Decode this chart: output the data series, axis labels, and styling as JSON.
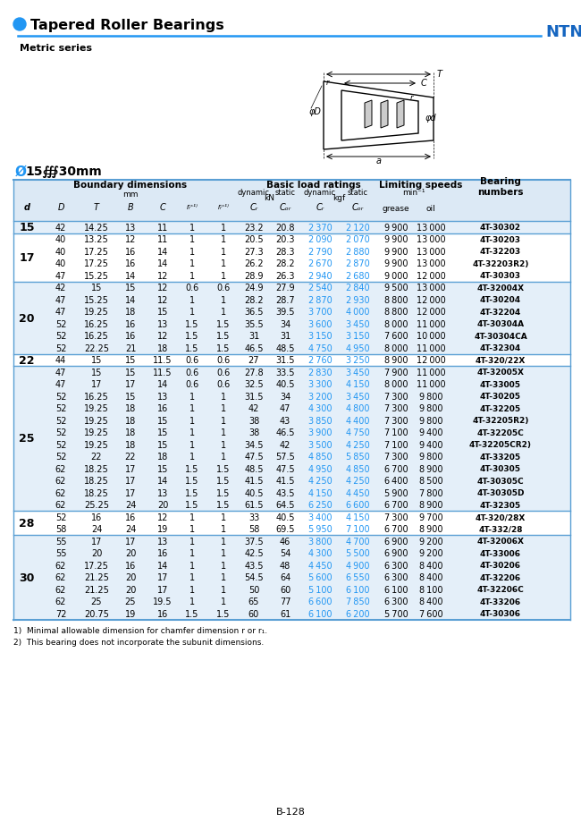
{
  "title": "Tapered Roller Bearings",
  "subtitle": "Metric series",
  "brand": "NTN",
  "footnote1": "1)  Minimal allowable dimension for chamfer dimension r or r₁.",
  "footnote2": "2)  This bearing does not incorporate the subunit dimensions.",
  "page": "B-128",
  "rows": [
    {
      "d": 15,
      "D": 42,
      "T": 14.25,
      "B": 13,
      "C": 11,
      "r1": 1,
      "r2": 1,
      "Cr": 23.2,
      "C0r": 20.8,
      "Cr_kgf": 2370,
      "C0r_kgf": 2120,
      "grease": 9900,
      "oil": 13000,
      "bearing": "4T-30302"
    },
    {
      "d": 17,
      "D": 40,
      "T": 13.25,
      "B": 12,
      "C": 11,
      "r1": 1,
      "r2": 1,
      "Cr": 20.5,
      "C0r": 20.3,
      "Cr_kgf": 2090,
      "C0r_kgf": 2070,
      "grease": 9900,
      "oil": 13000,
      "bearing": "4T-30203"
    },
    {
      "d": 17,
      "D": 40,
      "T": 17.25,
      "B": 16,
      "C": 14,
      "r1": 1,
      "r2": 1,
      "Cr": 27.3,
      "C0r": 28.3,
      "Cr_kgf": 2790,
      "C0r_kgf": 2880,
      "grease": 9900,
      "oil": 13000,
      "bearing": "4T-32203"
    },
    {
      "d": 17,
      "D": 40,
      "T": 17.25,
      "B": 16,
      "C": 14,
      "r1": 1,
      "r2": 1,
      "Cr": 26.2,
      "C0r": 28.2,
      "Cr_kgf": 2670,
      "C0r_kgf": 2870,
      "grease": 9900,
      "oil": 13000,
      "bearing": "4T-32203R2)"
    },
    {
      "d": 17,
      "D": 47,
      "T": 15.25,
      "B": 14,
      "C": 12,
      "r1": 1,
      "r2": 1,
      "Cr": 28.9,
      "C0r": 26.3,
      "Cr_kgf": 2940,
      "C0r_kgf": 2680,
      "grease": 9000,
      "oil": 12000,
      "bearing": "4T-30303"
    },
    {
      "d": 20,
      "D": 42,
      "T": 15,
      "B": 15,
      "C": 12,
      "r1": 0.6,
      "r2": 0.6,
      "Cr": 24.9,
      "C0r": 27.9,
      "Cr_kgf": 2540,
      "C0r_kgf": 2840,
      "grease": 9500,
      "oil": 13000,
      "bearing": "4T-32004X"
    },
    {
      "d": 20,
      "D": 47,
      "T": 15.25,
      "B": 14,
      "C": 12,
      "r1": 1,
      "r2": 1,
      "Cr": 28.2,
      "C0r": 28.7,
      "Cr_kgf": 2870,
      "C0r_kgf": 2930,
      "grease": 8800,
      "oil": 12000,
      "bearing": "4T-30204"
    },
    {
      "d": 20,
      "D": 47,
      "T": 19.25,
      "B": 18,
      "C": 15,
      "r1": 1,
      "r2": 1,
      "Cr": 36.5,
      "C0r": 39.5,
      "Cr_kgf": 3700,
      "C0r_kgf": 4000,
      "grease": 8800,
      "oil": 12000,
      "bearing": "4T-32204"
    },
    {
      "d": 20,
      "D": 52,
      "T": 16.25,
      "B": 16,
      "C": 13,
      "r1": 1.5,
      "r2": 1.5,
      "Cr": 35.5,
      "C0r": 34.0,
      "Cr_kgf": 3600,
      "C0r_kgf": 3450,
      "grease": 8000,
      "oil": 11000,
      "bearing": "4T-30304A"
    },
    {
      "d": 20,
      "D": 52,
      "T": 16.25,
      "B": 16,
      "C": 12,
      "r1": 1.5,
      "r2": 1.5,
      "Cr": 31.0,
      "C0r": 31.0,
      "Cr_kgf": 3150,
      "C0r_kgf": 3150,
      "grease": 7600,
      "oil": 10000,
      "bearing": "4T-30304CA"
    },
    {
      "d": 20,
      "D": 52,
      "T": 22.25,
      "B": 21,
      "C": 18,
      "r1": 1.5,
      "r2": 1.5,
      "Cr": 46.5,
      "C0r": 48.5,
      "Cr_kgf": 4750,
      "C0r_kgf": 4950,
      "grease": 8000,
      "oil": 11000,
      "bearing": "4T-32304"
    },
    {
      "d": 22,
      "D": 44,
      "T": 15,
      "B": 15,
      "C": 11.5,
      "r1": 0.6,
      "r2": 0.6,
      "Cr": 27.0,
      "C0r": 31.5,
      "Cr_kgf": 2760,
      "C0r_kgf": 3250,
      "grease": 8900,
      "oil": 12000,
      "bearing": "4T-320/22X"
    },
    {
      "d": 25,
      "D": 47,
      "T": 15,
      "B": 15,
      "C": 11.5,
      "r1": 0.6,
      "r2": 0.6,
      "Cr": 27.8,
      "C0r": 33.5,
      "Cr_kgf": 2830,
      "C0r_kgf": 3450,
      "grease": 7900,
      "oil": 11000,
      "bearing": "4T-32005X"
    },
    {
      "d": 25,
      "D": 47,
      "T": 17,
      "B": 17,
      "C": 14,
      "r1": 0.6,
      "r2": 0.6,
      "Cr": 32.5,
      "C0r": 40.5,
      "Cr_kgf": 3300,
      "C0r_kgf": 4150,
      "grease": 8000,
      "oil": 11000,
      "bearing": "4T-33005"
    },
    {
      "d": 25,
      "D": 52,
      "T": 16.25,
      "B": 15,
      "C": 13,
      "r1": 1,
      "r2": 1,
      "Cr": 31.5,
      "C0r": 34.0,
      "Cr_kgf": 3200,
      "C0r_kgf": 3450,
      "grease": 7300,
      "oil": 9800,
      "bearing": "4T-30205"
    },
    {
      "d": 25,
      "D": 52,
      "T": 19.25,
      "B": 18,
      "C": 16,
      "r1": 1,
      "r2": 1,
      "Cr": 42.0,
      "C0r": 47.0,
      "Cr_kgf": 4300,
      "C0r_kgf": 4800,
      "grease": 7300,
      "oil": 9800,
      "bearing": "4T-32205"
    },
    {
      "d": 25,
      "D": 52,
      "T": 19.25,
      "B": 18,
      "C": 15,
      "r1": 1,
      "r2": 1,
      "Cr": 38.0,
      "C0r": 43.0,
      "Cr_kgf": 3850,
      "C0r_kgf": 4400,
      "grease": 7300,
      "oil": 9800,
      "bearing": "4T-32205R2)"
    },
    {
      "d": 25,
      "D": 52,
      "T": 19.25,
      "B": 18,
      "C": 15,
      "r1": 1,
      "r2": 1,
      "Cr": 38.0,
      "C0r": 46.5,
      "Cr_kgf": 3900,
      "C0r_kgf": 4750,
      "grease": 7100,
      "oil": 9400,
      "bearing": "4T-32205C"
    },
    {
      "d": 25,
      "D": 52,
      "T": 19.25,
      "B": 18,
      "C": 15,
      "r1": 1,
      "r2": 1,
      "Cr": 34.5,
      "C0r": 42.0,
      "Cr_kgf": 3500,
      "C0r_kgf": 4250,
      "grease": 7100,
      "oil": 9400,
      "bearing": "4T-32205CR2)"
    },
    {
      "d": 25,
      "D": 52,
      "T": 22,
      "B": 22,
      "C": 18,
      "r1": 1,
      "r2": 1,
      "Cr": 47.5,
      "C0r": 57.5,
      "Cr_kgf": 4850,
      "C0r_kgf": 5850,
      "grease": 7300,
      "oil": 9800,
      "bearing": "4T-33205"
    },
    {
      "d": 25,
      "D": 62,
      "T": 18.25,
      "B": 17,
      "C": 15,
      "r1": 1.5,
      "r2": 1.5,
      "Cr": 48.5,
      "C0r": 47.5,
      "Cr_kgf": 4950,
      "C0r_kgf": 4850,
      "grease": 6700,
      "oil": 8900,
      "bearing": "4T-30305"
    },
    {
      "d": 25,
      "D": 62,
      "T": 18.25,
      "B": 17,
      "C": 14,
      "r1": 1.5,
      "r2": 1.5,
      "Cr": 41.5,
      "C0r": 41.5,
      "Cr_kgf": 4250,
      "C0r_kgf": 4250,
      "grease": 6400,
      "oil": 8500,
      "bearing": "4T-30305C"
    },
    {
      "d": 25,
      "D": 62,
      "T": 18.25,
      "B": 17,
      "C": 13,
      "r1": 1.5,
      "r2": 1.5,
      "Cr": 40.5,
      "C0r": 43.5,
      "Cr_kgf": 4150,
      "C0r_kgf": 4450,
      "grease": 5900,
      "oil": 7800,
      "bearing": "4T-30305D"
    },
    {
      "d": 25,
      "D": 62,
      "T": 25.25,
      "B": 24,
      "C": 20,
      "r1": 1.5,
      "r2": 1.5,
      "Cr": 61.5,
      "C0r": 64.5,
      "Cr_kgf": 6250,
      "C0r_kgf": 6600,
      "grease": 6700,
      "oil": 8900,
      "bearing": "4T-32305"
    },
    {
      "d": 28,
      "D": 52,
      "T": 16,
      "B": 16,
      "C": 12,
      "r1": 1,
      "r2": 1,
      "Cr": 33.0,
      "C0r": 40.5,
      "Cr_kgf": 3400,
      "C0r_kgf": 4150,
      "grease": 7300,
      "oil": 9700,
      "bearing": "4T-320/28X"
    },
    {
      "d": 28,
      "D": 58,
      "T": 24,
      "B": 24,
      "C": 19,
      "r1": 1,
      "r2": 1,
      "Cr": 58.0,
      "C0r": 69.5,
      "Cr_kgf": 5950,
      "C0r_kgf": 7100,
      "grease": 6700,
      "oil": 8900,
      "bearing": "4T-332/28"
    },
    {
      "d": 30,
      "D": 55,
      "T": 17,
      "B": 17,
      "C": 13,
      "r1": 1,
      "r2": 1,
      "Cr": 37.5,
      "C0r": 46.0,
      "Cr_kgf": 3800,
      "C0r_kgf": 4700,
      "grease": 6900,
      "oil": 9200,
      "bearing": "4T-32006X"
    },
    {
      "d": 30,
      "D": 55,
      "T": 20,
      "B": 20,
      "C": 16,
      "r1": 1,
      "r2": 1,
      "Cr": 42.5,
      "C0r": 54.0,
      "Cr_kgf": 4300,
      "C0r_kgf": 5500,
      "grease": 6900,
      "oil": 9200,
      "bearing": "4T-33006"
    },
    {
      "d": 30,
      "D": 62,
      "T": 17.25,
      "B": 16,
      "C": 14,
      "r1": 1,
      "r2": 1,
      "Cr": 43.5,
      "C0r": 48.0,
      "Cr_kgf": 4450,
      "C0r_kgf": 4900,
      "grease": 6300,
      "oil": 8400,
      "bearing": "4T-30206"
    },
    {
      "d": 30,
      "D": 62,
      "T": 21.25,
      "B": 20,
      "C": 17,
      "r1": 1,
      "r2": 1,
      "Cr": 54.5,
      "C0r": 64.0,
      "Cr_kgf": 5600,
      "C0r_kgf": 6550,
      "grease": 6300,
      "oil": 8400,
      "bearing": "4T-32206"
    },
    {
      "d": 30,
      "D": 62,
      "T": 21.25,
      "B": 20,
      "C": 17,
      "r1": 1,
      "r2": 1,
      "Cr": 50.0,
      "C0r": 60.0,
      "Cr_kgf": 5100,
      "C0r_kgf": 6100,
      "grease": 6100,
      "oil": 8100,
      "bearing": "4T-32206C"
    },
    {
      "d": 30,
      "D": 62,
      "T": 25,
      "B": 25,
      "C": 19.5,
      "r1": 1,
      "r2": 1,
      "Cr": 65.0,
      "C0r": 77.0,
      "Cr_kgf": 6600,
      "C0r_kgf": 7850,
      "grease": 6300,
      "oil": 8400,
      "bearing": "4T-33206"
    },
    {
      "d": 30,
      "D": 72,
      "T": 20.75,
      "B": 19,
      "C": 16,
      "r1": 1.5,
      "r2": 1.5,
      "Cr": 60.0,
      "C0r": 61.0,
      "Cr_kgf": 6100,
      "C0r_kgf": 6200,
      "grease": 5700,
      "oil": 7600,
      "bearing": "4T-30306"
    }
  ],
  "d_groups": [
    {
      "d": 15,
      "rows": [
        0
      ]
    },
    {
      "d": 17,
      "rows": [
        1,
        2,
        3,
        4
      ]
    },
    {
      "d": 20,
      "rows": [
        5,
        6,
        7,
        8,
        9,
        10
      ]
    },
    {
      "d": 22,
      "rows": [
        11
      ]
    },
    {
      "d": 25,
      "rows": [
        12,
        13,
        14,
        15,
        16,
        17,
        18,
        19,
        20,
        21,
        22,
        23
      ]
    },
    {
      "d": 28,
      "rows": [
        24,
        25
      ]
    },
    {
      "d": 30,
      "rows": [
        26,
        27,
        28,
        29,
        30,
        31,
        32
      ]
    }
  ],
  "blue_color": "#2196F3",
  "header_bg": "#dce9f5",
  "row_bg_light": "#e4eff9",
  "row_bg_white": "#ffffff",
  "sep_color": "#5a9fd4",
  "brand_color": "#1565C0"
}
